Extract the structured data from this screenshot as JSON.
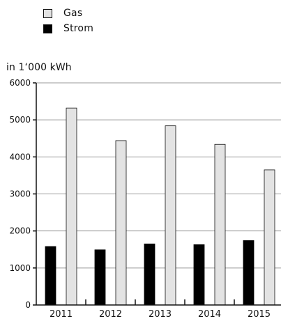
{
  "chart_data": {
    "type": "bar",
    "categories": [
      "2011",
      "2012",
      "2013",
      "2014",
      "2015"
    ],
    "series": [
      {
        "name": "Strom",
        "color": "#000000",
        "values": [
          1580,
          1490,
          1650,
          1630,
          1740
        ]
      },
      {
        "name": "Gas",
        "color": "#e3e3e3",
        "values": [
          5320,
          4440,
          4840,
          4340,
          3650
        ]
      }
    ],
    "legend": {
      "placement": "top-left",
      "items": [
        {
          "label": "Gas",
          "color": "#e3e3e3"
        },
        {
          "label": "Strom",
          "color": "#000000"
        }
      ]
    },
    "ylabel": "in 1‘000 kWh",
    "xlabel": "",
    "title": "",
    "ylim": [
      0,
      6000
    ],
    "yticks": [
      "0",
      "1000",
      "2000",
      "3000",
      "4000",
      "5000",
      "6000"
    ],
    "grid": true
  }
}
